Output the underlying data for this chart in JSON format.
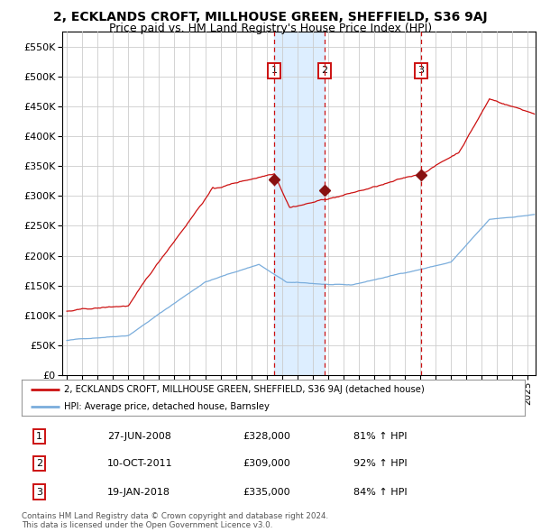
{
  "title": "2, ECKLANDS CROFT, MILLHOUSE GREEN, SHEFFIELD, S36 9AJ",
  "subtitle": "Price paid vs. HM Land Registry's House Price Index (HPI)",
  "legend_line1": "2, ECKLANDS CROFT, MILLHOUSE GREEN, SHEFFIELD, S36 9AJ (detached house)",
  "legend_line2": "HPI: Average price, detached house, Barnsley",
  "footer1": "Contains HM Land Registry data © Crown copyright and database right 2024.",
  "footer2": "This data is licensed under the Open Government Licence v3.0.",
  "transactions": [
    {
      "num": 1,
      "date": "27-JUN-2008",
      "price": 328000,
      "pct": "81% ↑ HPI",
      "x_year": 2008.49
    },
    {
      "num": 2,
      "date": "10-OCT-2011",
      "price": 309000,
      "pct": "92% ↑ HPI",
      "x_year": 2011.77
    },
    {
      "num": 3,
      "date": "19-JAN-2018",
      "price": 335000,
      "pct": "84% ↑ HPI",
      "x_year": 2018.05
    }
  ],
  "ylim": [
    0,
    575000
  ],
  "yticks": [
    0,
    50000,
    100000,
    150000,
    200000,
    250000,
    300000,
    350000,
    400000,
    450000,
    500000,
    550000
  ],
  "xlim_start": 1994.7,
  "xlim_end": 2025.5,
  "hpi_color": "#7aaddc",
  "price_color": "#cc1111",
  "marker_color": "#881111",
  "vline_color": "#cc1111",
  "shade_color": "#ddeeff",
  "background_color": "#ffffff",
  "grid_color": "#cccccc",
  "title_fontsize": 10,
  "subtitle_fontsize": 9
}
